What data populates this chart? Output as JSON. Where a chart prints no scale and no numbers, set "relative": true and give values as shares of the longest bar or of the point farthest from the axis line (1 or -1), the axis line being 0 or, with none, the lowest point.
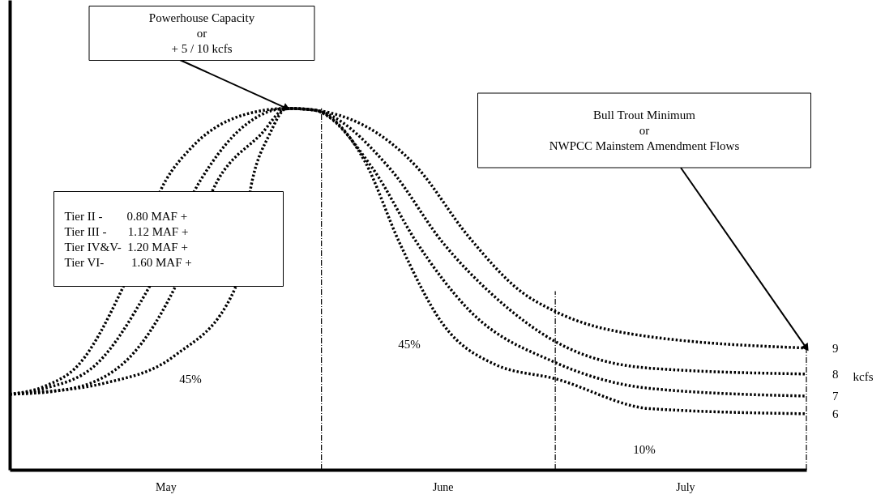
{
  "chart_data": {
    "type": "line",
    "relative": true,
    "line_style": "dotted",
    "marker": "none",
    "xlim": [
      "--05-01",
      "--08-01"
    ],
    "xticks": [
      {
        "value": "--05-19",
        "label": "May"
      },
      {
        "value": "--06-20",
        "label": "June"
      },
      {
        "value": "--07-18",
        "label": "July"
      }
    ],
    "series": [
      {
        "name": "9",
        "color": "#000000",
        "x": [
          "--05-01",
          "--05-05",
          "--05-09",
          "--05-14",
          "--05-19",
          "--05-22",
          "--05-28",
          "--06-02",
          "--06-05",
          "--06-17",
          "--06-23",
          "--06-29",
          "--07-03",
          "--07-12",
          "--08-01"
        ],
        "values": [
          0.209,
          0.231,
          0.292,
          0.501,
          0.8,
          0.892,
          0.982,
          1.0,
          0.996,
          0.838,
          0.645,
          0.494,
          0.438,
          0.375,
          0.337
        ]
      },
      {
        "name": "8",
        "color": "#000000",
        "x": [
          "--05-01",
          "--05-05",
          "--05-11",
          "--05-17",
          "--05-23",
          "--05-27",
          "--06-02",
          "--06-05",
          "--06-14",
          "--06-20",
          "--06-26",
          "--07-03",
          "--07-14",
          "--08-01"
        ],
        "values": [
          0.209,
          0.225,
          0.292,
          0.501,
          0.8,
          0.928,
          1.0,
          0.996,
          0.831,
          0.629,
          0.479,
          0.355,
          0.281,
          0.265
        ]
      },
      {
        "name": "7",
        "color": "#000000",
        "x": [
          "--05-01",
          "--05-07",
          "--05-14",
          "--05-20",
          "--05-25",
          "--05-30",
          "--06-02",
          "--06-05",
          "--06-12",
          "--06-17",
          "--06-23",
          "--07-03",
          "--07-14",
          "--08-01"
        ],
        "values": [
          0.209,
          0.22,
          0.292,
          0.501,
          0.8,
          0.928,
          1.0,
          0.996,
          0.831,
          0.629,
          0.443,
          0.297,
          0.225,
          0.204
        ]
      },
      {
        "name": "6",
        "color": "#000000",
        "x": [
          "--05-01",
          "--05-06",
          "--05-12",
          "--05-20",
          "--05-27",
          "--05-29",
          "--05-31",
          "--06-02",
          "--06-05",
          "--06-11",
          "--06-15",
          "--06-20",
          "--06-26",
          "--07-03",
          "--07-14",
          "--08-01"
        ],
        "values": [
          0.209,
          0.218,
          0.24,
          0.315,
          0.501,
          0.8,
          0.928,
          1.0,
          0.996,
          0.854,
          0.629,
          0.404,
          0.292,
          0.252,
          0.169,
          0.155
        ]
      }
    ],
    "ref_lines": [
      {
        "axis": "x",
        "value": "--06-06",
        "line_style": "dashed",
        "color": "#000000"
      },
      {
        "axis": "x",
        "value": "--07-03",
        "line_style": "dashed",
        "color": "#000000"
      },
      {
        "axis": "x",
        "value": "--08-01",
        "line_style": "dashed",
        "color": "#000000"
      }
    ],
    "annotations": [
      {
        "text": "Powerhouse Capacity\nor\n+ 5 / 10 kcfs",
        "x": "--06-02",
        "y": 1.0
      },
      {
        "text": "Bull Trout Minimum\nor\nNWPCC Mainstem Amendment Flows",
        "x": "--08-01",
        "y": 0.337
      },
      "Tier II -        0.80 MAF +\nTier III -       1.12 MAF +\nTier IV&V-  1.20 MAF +\nTier VI-         1.60 MAF +",
      "45%",
      "45%",
      "10%",
      "kcfs"
    ]
  }
}
